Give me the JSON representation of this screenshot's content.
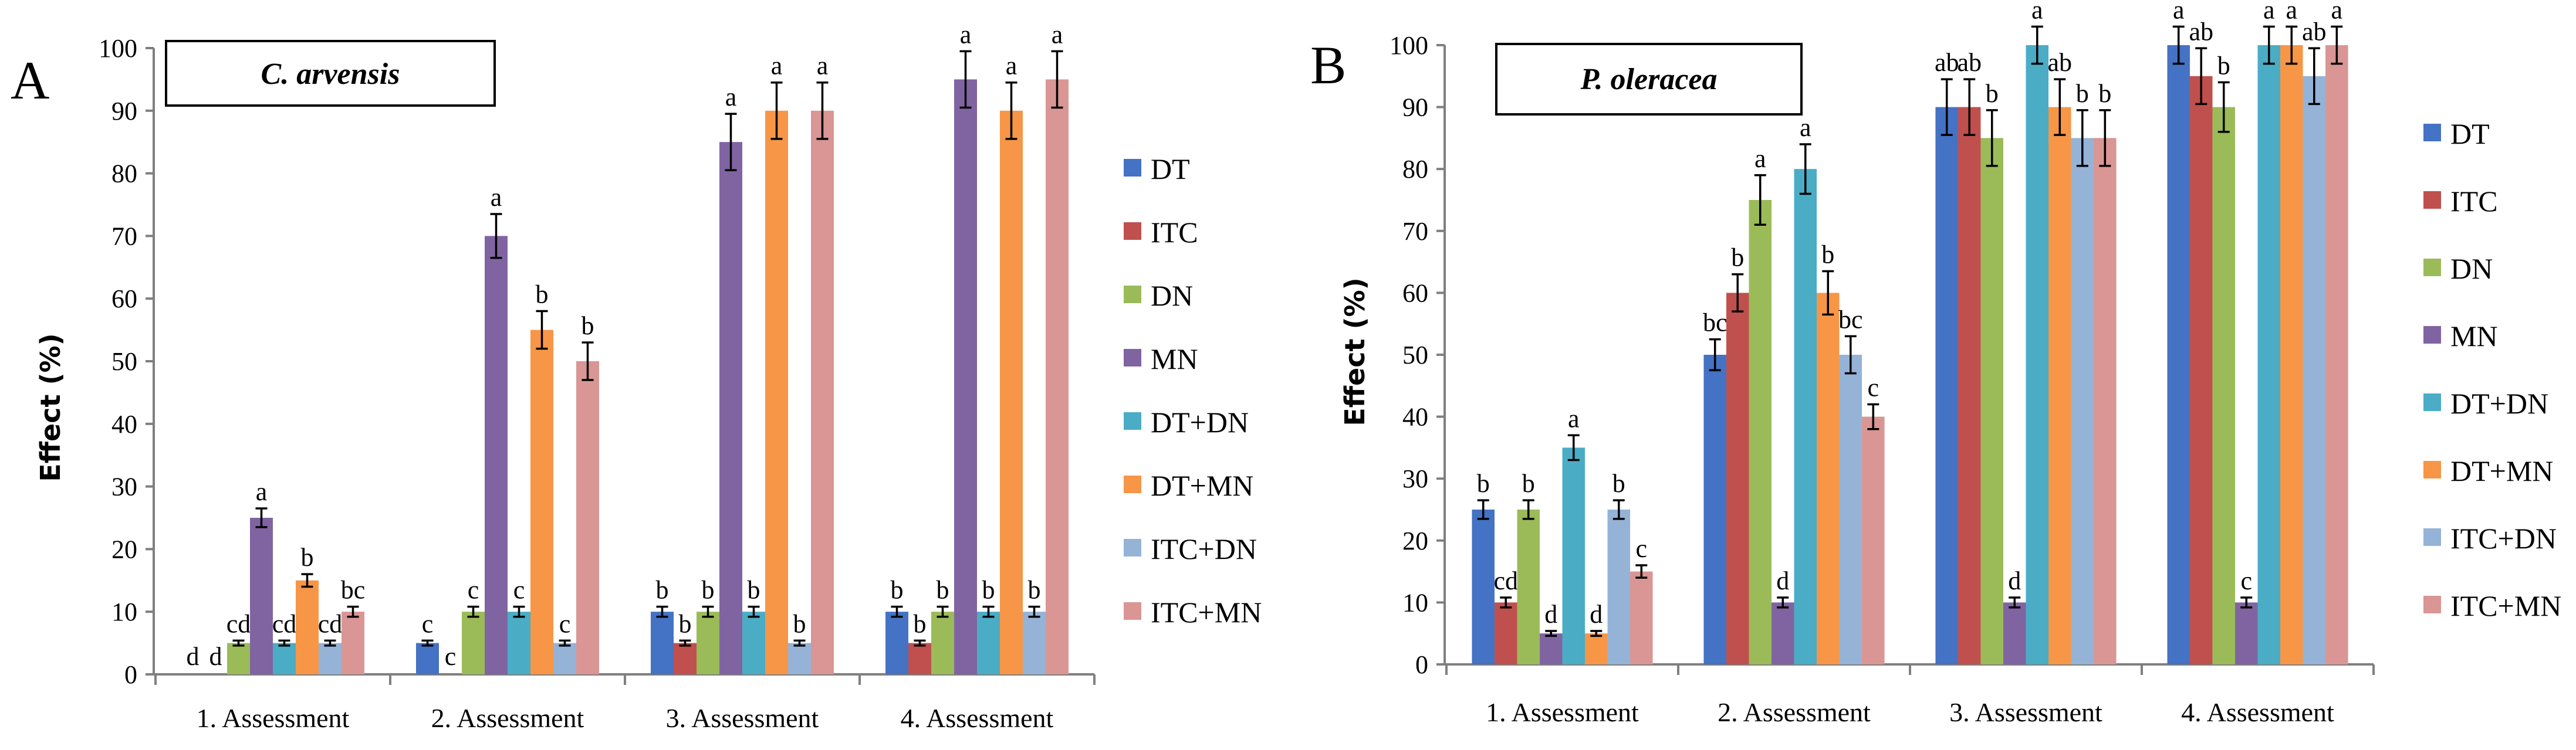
{
  "colors": {
    "DT": "#4472C4",
    "ITC": "#C0504D",
    "DN": "#9BBB59",
    "MN": "#8064A2",
    "DT+DN": "#4BACC6",
    "DT+MN": "#F79646",
    "ITC+DN": "#95B3D7",
    "ITC+MN": "#D99694"
  },
  "chart_data": [
    {
      "panel": "A",
      "type": "bar",
      "title": "C. arvensis",
      "xlabel": "",
      "ylabel": "Effect (%)",
      "ylim": [
        0,
        100
      ],
      "yticks": [
        "0",
        "10",
        "20",
        "30",
        "40",
        "50",
        "60",
        "70",
        "80",
        "90",
        "100"
      ],
      "categories": [
        "1. Assessment",
        "2. Assessment",
        "3. Assessment",
        "4. Assessment"
      ],
      "series": [
        {
          "name": "DT",
          "values": [
            0,
            5,
            10,
            10
          ],
          "errors": [
            0,
            0.4,
            0.8,
            0.8
          ],
          "labels": [
            "d",
            "c",
            "b",
            "b"
          ]
        },
        {
          "name": "ITC",
          "values": [
            0,
            0,
            5,
            5
          ],
          "errors": [
            0,
            0,
            0.4,
            0.4
          ],
          "labels": [
            "d",
            "c",
            "b",
            "b"
          ]
        },
        {
          "name": "DN",
          "values": [
            5,
            10,
            10,
            10
          ],
          "errors": [
            0.4,
            0.8,
            0.8,
            0.8
          ],
          "labels": [
            "cd",
            "c",
            "b",
            "b"
          ]
        },
        {
          "name": "MN",
          "values": [
            25,
            70,
            85,
            95
          ],
          "errors": [
            1.5,
            3.5,
            4.5,
            4.5
          ],
          "labels": [
            "a",
            "a",
            "a",
            "a"
          ]
        },
        {
          "name": "DT+DN",
          "values": [
            5,
            10,
            10,
            10
          ],
          "errors": [
            0.4,
            0.8,
            0.8,
            0.8
          ],
          "labels": [
            "cd",
            "c",
            "b",
            "b"
          ]
        },
        {
          "name": "DT+MN",
          "values": [
            15,
            55,
            90,
            90
          ],
          "errors": [
            1.0,
            3.0,
            4.5,
            4.5
          ],
          "labels": [
            "b",
            "b",
            "a",
            "a"
          ]
        },
        {
          "name": "ITC+DN",
          "values": [
            5,
            5,
            5,
            10
          ],
          "errors": [
            0.4,
            0.4,
            0.4,
            0.8
          ],
          "labels": [
            "cd",
            "c",
            "b",
            "b"
          ]
        },
        {
          "name": "ITC+MN",
          "values": [
            10,
            50,
            90,
            95
          ],
          "errors": [
            0.8,
            3.0,
            4.5,
            4.5
          ],
          "labels": [
            "bc",
            "b",
            "a",
            "a"
          ]
        }
      ],
      "legend": [
        "DT",
        "ITC",
        "DN",
        "MN",
        "DT+DN",
        "DT+MN",
        "ITC+DN",
        "ITC+MN"
      ],
      "legend_position": "right",
      "grid": false
    },
    {
      "panel": "B",
      "type": "bar",
      "title": "P. oleracea",
      "xlabel": "",
      "ylabel": "Effect (%)",
      "ylim": [
        0,
        100
      ],
      "yticks": [
        "0",
        "10",
        "20",
        "30",
        "40",
        "50",
        "60",
        "70",
        "80",
        "90",
        "100"
      ],
      "categories": [
        "1. Assessment",
        "2. Assessment",
        "3. Assessment",
        "4. Assessment"
      ],
      "series": [
        {
          "name": "DT",
          "values": [
            25,
            50,
            90,
            100
          ],
          "errors": [
            1.5,
            2.5,
            4.5,
            3.0
          ],
          "labels": [
            "b",
            "bc",
            "ab",
            "a"
          ]
        },
        {
          "name": "ITC",
          "values": [
            10,
            60,
            90,
            95
          ],
          "errors": [
            0.8,
            3.0,
            4.5,
            4.5
          ],
          "labels": [
            "cd",
            "b",
            "ab",
            "ab"
          ]
        },
        {
          "name": "DN",
          "values": [
            25,
            75,
            85,
            90
          ],
          "errors": [
            1.5,
            4.0,
            4.5,
            4.0
          ],
          "labels": [
            "b",
            "a",
            "b",
            "b"
          ]
        },
        {
          "name": "MN",
          "values": [
            5,
            10,
            10,
            10
          ],
          "errors": [
            0.4,
            0.8,
            0.8,
            0.8
          ],
          "labels": [
            "d",
            "d",
            "d",
            "c"
          ]
        },
        {
          "name": "DT+DN",
          "values": [
            35,
            80,
            100,
            100
          ],
          "errors": [
            2.0,
            4.0,
            3.0,
            3.0
          ],
          "labels": [
            "a",
            "a",
            "a",
            "a"
          ]
        },
        {
          "name": "DT+MN",
          "values": [
            5,
            60,
            90,
            100
          ],
          "errors": [
            0.4,
            3.5,
            4.5,
            3.0
          ],
          "labels": [
            "d",
            "b",
            "ab",
            "a"
          ]
        },
        {
          "name": "ITC+DN",
          "values": [
            25,
            50,
            85,
            95
          ],
          "errors": [
            1.5,
            3.0,
            4.5,
            4.5
          ],
          "labels": [
            "b",
            "bc",
            "b",
            "ab"
          ]
        },
        {
          "name": "ITC+MN",
          "values": [
            15,
            40,
            85,
            100
          ],
          "errors": [
            1.0,
            2.0,
            4.5,
            3.0
          ],
          "labels": [
            "c",
            "c",
            "b",
            "a"
          ]
        }
      ],
      "legend": [
        "DT",
        "ITC",
        "DN",
        "MN",
        "DT+DN",
        "DT+MN",
        "ITC+DN",
        "ITC+MN"
      ],
      "legend_position": "right",
      "grid": false
    }
  ]
}
